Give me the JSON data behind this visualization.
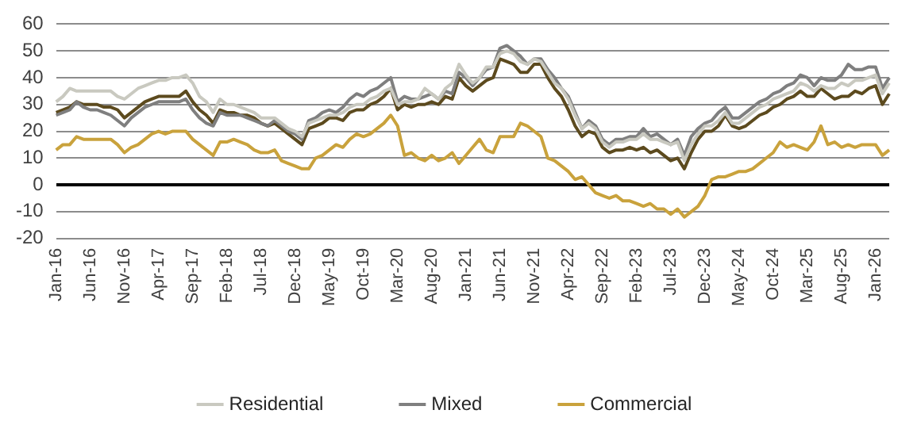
{
  "chart_data": {
    "type": "line",
    "categories": [
      "Jan-16",
      null,
      null,
      null,
      null,
      "Jun-16",
      null,
      null,
      null,
      null,
      "Nov-16",
      null,
      null,
      null,
      null,
      "Apr-17",
      null,
      null,
      null,
      null,
      "Sep-17",
      null,
      null,
      null,
      null,
      "Feb-18",
      null,
      null,
      null,
      null,
      "Jul-18",
      null,
      null,
      null,
      null,
      "Dec-18",
      null,
      null,
      null,
      null,
      "May-19",
      null,
      null,
      null,
      null,
      "Oct-19",
      null,
      null,
      null,
      null,
      "Mar-20",
      null,
      null,
      null,
      null,
      "Aug-20",
      null,
      null,
      null,
      null,
      "Jan-21",
      null,
      null,
      null,
      null,
      "Jun-21",
      null,
      null,
      null,
      null,
      "Nov-21",
      null,
      null,
      null,
      null,
      "Apr-22",
      null,
      null,
      null,
      null,
      "Sep-22",
      null,
      null,
      null,
      null,
      "Feb-23",
      null,
      null,
      null,
      null,
      "Jul-23",
      null,
      null,
      null,
      null,
      "Dec-23",
      null,
      null,
      null,
      null,
      "May-24",
      null,
      null,
      null,
      null,
      "Oct-24",
      null,
      null,
      null,
      null,
      "Mar-25",
      null,
      null,
      null,
      null,
      "Aug-25",
      null,
      null,
      null,
      null,
      "Jan-26",
      null,
      null
    ],
    "series": [
      {
        "name": "Residential",
        "color": "#c9c9c0",
        "values": [
          31,
          33,
          36,
          35,
          35,
          35,
          35,
          35,
          35,
          33,
          32,
          34,
          36,
          37,
          38,
          39,
          39,
          40,
          40,
          41,
          38,
          33,
          31,
          27,
          32,
          30,
          30,
          29,
          28,
          27,
          25,
          25,
          25,
          23,
          21,
          20,
          18,
          23,
          24,
          25,
          26,
          26,
          27,
          29,
          30,
          30,
          32,
          33,
          35,
          36,
          30,
          31,
          31,
          32,
          36,
          34,
          32,
          36,
          38,
          45,
          41,
          38,
          40,
          44,
          44,
          49,
          50,
          49,
          46,
          45,
          47,
          46,
          42,
          38,
          36,
          32,
          26,
          21,
          23,
          21,
          16,
          14,
          16,
          16,
          17,
          17,
          19,
          17,
          17,
          16,
          15,
          16,
          9,
          15,
          19,
          22,
          22,
          24,
          27,
          23,
          23,
          25,
          27,
          29,
          30,
          32,
          33,
          34,
          35,
          38,
          37,
          35,
          37,
          36,
          36,
          38,
          37,
          39,
          39,
          40,
          41,
          34,
          38
        ]
      },
      {
        "name": "Mixed",
        "color": "#7f7f7f",
        "values": [
          26,
          27,
          28,
          31,
          29,
          28,
          28,
          27,
          26,
          24,
          22,
          25,
          27,
          29,
          30,
          31,
          31,
          31,
          31,
          32,
          28,
          25,
          23,
          22,
          27,
          26,
          26,
          26,
          25,
          24,
          23,
          22,
          24,
          22,
          20,
          19,
          17,
          24,
          25,
          27,
          28,
          27,
          29,
          32,
          34,
          33,
          35,
          36,
          38,
          40,
          31,
          33,
          32,
          32,
          33,
          34,
          32,
          35,
          34,
          42,
          40,
          37,
          40,
          43,
          44,
          51,
          52,
          50,
          48,
          45,
          47,
          47,
          43,
          40,
          36,
          33,
          27,
          21,
          24,
          22,
          17,
          15,
          17,
          17,
          18,
          18,
          21,
          18,
          19,
          17,
          15,
          17,
          11,
          18,
          21,
          23,
          24,
          27,
          29,
          25,
          25,
          27,
          29,
          31,
          32,
          34,
          35,
          37,
          38,
          41,
          40,
          37,
          40,
          39,
          39,
          41,
          45,
          43,
          43,
          44,
          44,
          36,
          40
        ]
      },
      {
        "name": "Commercial",
        "color": "#c9a23c",
        "values": [
          13,
          15,
          15,
          18,
          17,
          17,
          17,
          17,
          17,
          15,
          12,
          14,
          15,
          17,
          19,
          20,
          19,
          20,
          20,
          20,
          17,
          15,
          13,
          11,
          16,
          16,
          17,
          16,
          15,
          13,
          12,
          12,
          13,
          9,
          8,
          7,
          6,
          6,
          10,
          11,
          13,
          15,
          14,
          17,
          19,
          18,
          19,
          21,
          23,
          26,
          22,
          11,
          12,
          10,
          9,
          11,
          9,
          10,
          12,
          8,
          11,
          14,
          17,
          13,
          12,
          18,
          18,
          18,
          23,
          22,
          20,
          18,
          10,
          9,
          7,
          5,
          2,
          3,
          0,
          -3,
          -4,
          -5,
          -4,
          -6,
          -6,
          -7,
          -8,
          -7,
          -9,
          -9,
          -11,
          -9,
          -12,
          -10,
          -8,
          -4,
          2,
          3,
          3,
          4,
          5,
          5,
          6,
          8,
          10,
          12,
          16,
          14,
          15,
          14,
          13,
          16,
          22,
          15,
          16,
          14,
          15,
          14,
          15,
          15,
          15,
          11,
          13
        ]
      },
      {
        "color": "#5c4a1e",
        "values": [
          27,
          28,
          29,
          31,
          30,
          30,
          30,
          29,
          29,
          28,
          25,
          27,
          29,
          31,
          32,
          33,
          33,
          33,
          33,
          35,
          31,
          28,
          26,
          23,
          28,
          27,
          27,
          26,
          26,
          25,
          23,
          22,
          23,
          21,
          19,
          17,
          15,
          21,
          22,
          23,
          25,
          25,
          24,
          27,
          28,
          28,
          30,
          31,
          33,
          36,
          28,
          30,
          29,
          30,
          30,
          31,
          30,
          33,
          32,
          40,
          37,
          35,
          37,
          39,
          40,
          47,
          46,
          45,
          42,
          42,
          45,
          45,
          40,
          36,
          33,
          28,
          22,
          18,
          20,
          19,
          14,
          12,
          13,
          13,
          14,
          13,
          14,
          12,
          13,
          11,
          9,
          10,
          6,
          12,
          17,
          20,
          20,
          22,
          26,
          22,
          21,
          22,
          24,
          26,
          27,
          29,
          30,
          32,
          33,
          35,
          33,
          33,
          36,
          34,
          32,
          33,
          33,
          35,
          34,
          36,
          37,
          30,
          34
        ]
      }
    ],
    "ylim": [
      -20,
      60
    ],
    "yticks": [
      -20,
      -10,
      0,
      10,
      20,
      30,
      40,
      50,
      60
    ],
    "grid": "y",
    "legend": "bottom",
    "marker": "none",
    "line_style": "solid"
  }
}
